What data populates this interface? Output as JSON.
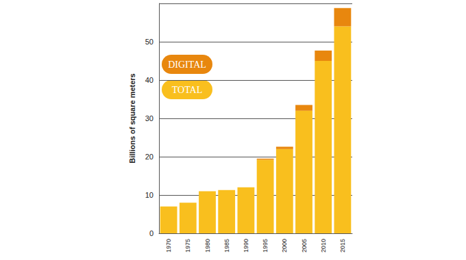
{
  "chart_data": {
    "type": "bar",
    "stacked": true,
    "y_label": "Billions of square meters",
    "categories": [
      "1970",
      "1975",
      "1980",
      "1985",
      "1990",
      "1995",
      "2000",
      "2005",
      "2010",
      "2015"
    ],
    "series": [
      {
        "name": "TOTAL",
        "color": "#f9bf1e",
        "values": [
          7,
          8,
          11,
          11.3,
          12,
          19.2,
          22,
          32,
          45,
          54
        ]
      },
      {
        "name": "DIGITAL",
        "color": "#e8870e",
        "values": [
          0,
          0,
          0,
          0,
          0,
          0.3,
          0.6,
          1.5,
          2.7,
          4.8
        ]
      }
    ],
    "ylim": [
      0,
      60
    ],
    "yticks": [
      0,
      10,
      20,
      30,
      40,
      50
    ],
    "grid": true,
    "legend": "upper left"
  }
}
